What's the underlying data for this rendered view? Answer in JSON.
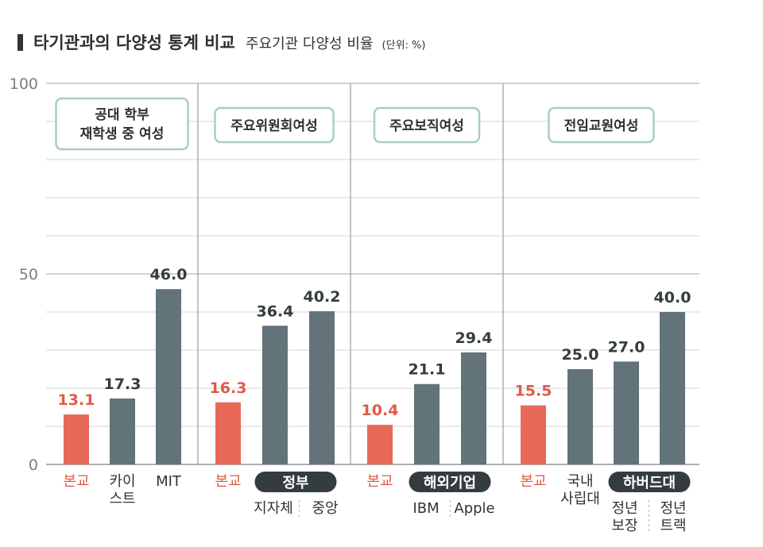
{
  "header": {
    "title": "타기관과의 다양성 통계 비교",
    "subtitle": "주요기관 다양성 비율",
    "unit": "(단위: %)"
  },
  "chart_data": {
    "type": "bar",
    "ylim": [
      0,
      100
    ],
    "y_ticks": [
      "0",
      "50",
      "100"
    ],
    "grid": true,
    "colors": {
      "home": "#e8695a",
      "other": "#627379",
      "accent_text": "#e05a48",
      "panel_border": "#a9cdc8"
    },
    "groups": [
      {
        "label": [
          "공대 학부",
          "재학생 중 여성"
        ],
        "bars": [
          {
            "label": [
              "본교"
            ],
            "value": 13.1,
            "value_label": "13.1",
            "kind": "home"
          },
          {
            "label": [
              "카이",
              "스트"
            ],
            "value": 17.3,
            "value_label": "17.3",
            "kind": "other"
          },
          {
            "label": [
              "MIT"
            ],
            "value": 46.0,
            "value_label": "46.0",
            "kind": "other"
          }
        ],
        "category_pill": null,
        "sub_labels": []
      },
      {
        "label": [
          "주요위원회여성"
        ],
        "bars": [
          {
            "label": [
              "본교"
            ],
            "value": 16.3,
            "value_label": "16.3",
            "kind": "home"
          },
          {
            "label": [],
            "value": 36.4,
            "value_label": "36.4",
            "kind": "other"
          },
          {
            "label": [],
            "value": 40.2,
            "value_label": "40.2",
            "kind": "other"
          }
        ],
        "category_pill": "정부",
        "sub_labels": [
          [
            "지자체"
          ],
          [
            "중앙"
          ]
        ]
      },
      {
        "label": [
          "주요보직여성"
        ],
        "bars": [
          {
            "label": [
              "본교"
            ],
            "value": 10.4,
            "value_label": "10.4",
            "kind": "home"
          },
          {
            "label": [],
            "value": 21.1,
            "value_label": "21.1",
            "kind": "other"
          },
          {
            "label": [],
            "value": 29.4,
            "value_label": "29.4",
            "kind": "other"
          }
        ],
        "category_pill": "해외기업",
        "sub_labels": [
          [
            "IBM"
          ],
          [
            "Apple"
          ]
        ]
      },
      {
        "label": [
          "전임교원여성"
        ],
        "bars": [
          {
            "label": [
              "본교"
            ],
            "value": 15.5,
            "value_label": "15.5",
            "kind": "home"
          },
          {
            "label": [
              "국내",
              "사립대"
            ],
            "value": 25.0,
            "value_label": "25.0",
            "kind": "other"
          },
          {
            "label": [],
            "value": 27.0,
            "value_label": "27.0",
            "kind": "other"
          },
          {
            "label": [],
            "value": 40.0,
            "value_label": "40.0",
            "kind": "other"
          }
        ],
        "category_pill": "하버드대",
        "sub_labels": [
          [
            "정년",
            "보장"
          ],
          [
            "정년",
            "트랙"
          ]
        ]
      }
    ]
  }
}
